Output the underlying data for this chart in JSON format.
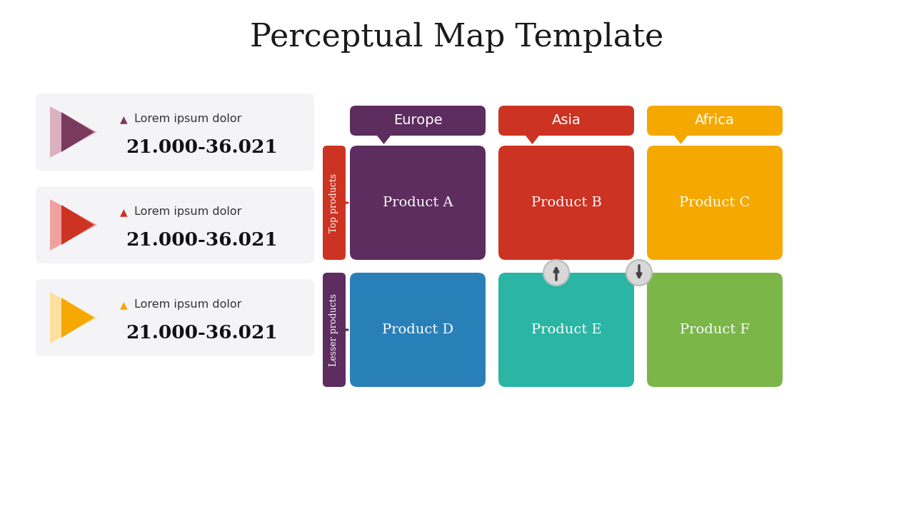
{
  "title": "Perceptual Map Template",
  "title_fontsize": 32,
  "background_color": "#ffffff",
  "regions": [
    "Europe",
    "Asia",
    "Africa"
  ],
  "region_colors": [
    "#5c2d5e",
    "#cc3322",
    "#f5a800"
  ],
  "row_labels": [
    "Top products",
    "Lesser products"
  ],
  "row_label_colors": [
    "#cc3322",
    "#5c2d5e"
  ],
  "products": [
    [
      "Product A",
      "Product B",
      "Product C"
    ],
    [
      "Product D",
      "Product E",
      "Product F"
    ]
  ],
  "product_colors": [
    [
      "#5c2d5e",
      "#cc3322",
      "#f5a800"
    ],
    [
      "#2980b9",
      "#2ab5a5",
      "#7ab648"
    ]
  ],
  "legend_items": [
    {
      "arrow_color": "#7a3a5e",
      "shadow_color": "#dbb0c0",
      "label": "Lorem ipsum dolor",
      "value": "21.000-36.021"
    },
    {
      "arrow_color": "#cc3322",
      "shadow_color": "#f0a0a0",
      "label": "Lorem ipsum dolor",
      "value": "21.000-36.021"
    },
    {
      "arrow_color": "#f5a800",
      "shadow_color": "#fde0a0",
      "label": "Lorem ipsum dolor",
      "value": "21.000-36.021"
    }
  ]
}
